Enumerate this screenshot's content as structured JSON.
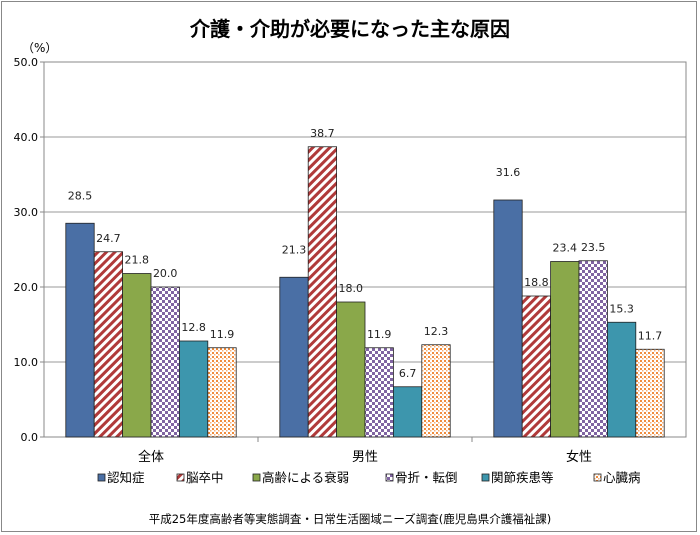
{
  "chart_data": {
    "type": "bar",
    "title": "介護・介助が必要になった主な原因",
    "ylabel": "（%）",
    "ylim": [
      0,
      50
    ],
    "yticks": [
      "0.0",
      "10.0",
      "20.0",
      "30.0",
      "40.0",
      "50.0"
    ],
    "grid": true,
    "legend_position": "bottom",
    "categories": [
      "全体",
      "男性",
      "女性"
    ],
    "series": [
      {
        "name": "認知症",
        "values": [
          28.5,
          21.3,
          31.6
        ],
        "color": "#4a6fa5",
        "pattern": "solid"
      },
      {
        "name": "脳卒中",
        "values": [
          24.7,
          38.7,
          18.8
        ],
        "color": "#b03a3a",
        "pattern": "diagonal-stripes"
      },
      {
        "name": "高齢による衰弱",
        "values": [
          21.8,
          18.0,
          23.4
        ],
        "color": "#8aa84a",
        "pattern": "solid"
      },
      {
        "name": "骨折・転倒",
        "values": [
          20.0,
          11.9,
          23.5
        ],
        "color": "#8064a2",
        "pattern": "checker"
      },
      {
        "name": "関節疾患等",
        "values": [
          12.8,
          6.7,
          15.3
        ],
        "color": "#3d96ad",
        "pattern": "solid"
      },
      {
        "name": "心臓病",
        "values": [
          11.9,
          12.3,
          11.7
        ],
        "color": "#f08c3c",
        "pattern": "dots"
      }
    ],
    "source": "平成25年度高齢者等実態調査・日常生活圏域ニーズ調査(鹿児島県介護福祉課)"
  }
}
